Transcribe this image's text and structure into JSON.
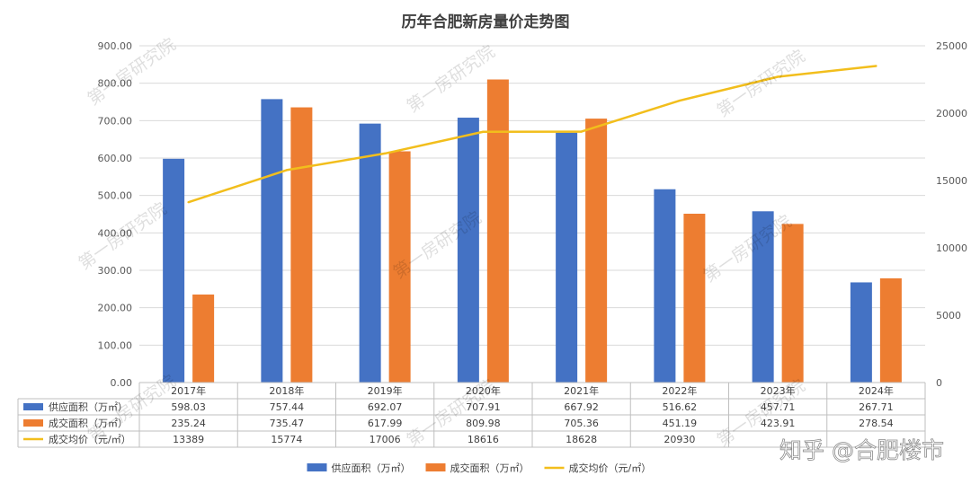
{
  "chart_data": {
    "type": "bar",
    "title": "历年合肥新房量价走势图",
    "categories": [
      "2017年",
      "2018年",
      "2019年",
      "2020年",
      "2021年",
      "2022年",
      "2023年",
      "2024年"
    ],
    "series": [
      {
        "name": "供应面积（万㎡）",
        "type": "bar",
        "axis": "left",
        "color": "#4472C4",
        "values": [
          598.03,
          757.44,
          692.07,
          707.91,
          667.92,
          516.62,
          457.71,
          267.71
        ],
        "labels": [
          "598.03",
          "757.44",
          "692.07",
          "707.91",
          "667.92",
          "516.62",
          "457.71",
          "267.71"
        ]
      },
      {
        "name": "成交面积（万㎡）",
        "type": "bar",
        "axis": "left",
        "color": "#ED7D31",
        "values": [
          235.24,
          735.47,
          617.99,
          809.98,
          705.36,
          451.19,
          423.91,
          278.54
        ],
        "labels": [
          "235.24",
          "735.47",
          "617.99",
          "809.98",
          "705.36",
          "451.19",
          "423.91",
          "278.54"
        ]
      },
      {
        "name": "成交均价（元/㎡）",
        "type": "line",
        "axis": "right",
        "color": "#F2BE1C",
        "values": [
          13389,
          15774,
          17006,
          18616,
          18628,
          20930,
          22700,
          23500
        ],
        "labels": [
          "13389",
          "15774",
          "17006",
          "18616",
          "18628",
          "20930",
          "",
          ""
        ]
      }
    ],
    "y_left": {
      "min": 0,
      "max": 900,
      "step": 100,
      "ticks": [
        "0.00",
        "100.00",
        "200.00",
        "300.00",
        "400.00",
        "500.00",
        "600.00",
        "700.00",
        "800.00",
        "900.00"
      ]
    },
    "y_right": {
      "min": 0,
      "max": 25000,
      "step": 5000,
      "ticks": [
        "0",
        "5000",
        "10000",
        "15000",
        "20000",
        "25000"
      ]
    },
    "grid": true,
    "legend_position": "bottom",
    "data_table": true
  },
  "watermarks": {
    "text": "第一房研究院",
    "credit": "知乎 @合肥楼市"
  }
}
